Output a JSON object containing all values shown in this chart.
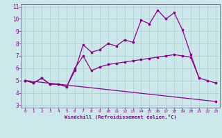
{
  "xlabel": "Windchill (Refroidissement éolien,°C)",
  "bg_color": "#cce8ea",
  "line_color": "#880088",
  "grid_color": "#aacccc",
  "axis_color": "#666688",
  "text_color": "#880088",
  "xlim": [
    -0.5,
    23.5
  ],
  "ylim": [
    2.8,
    11.2
  ],
  "xticks": [
    0,
    1,
    2,
    3,
    4,
    5,
    6,
    7,
    8,
    9,
    10,
    11,
    12,
    13,
    14,
    15,
    16,
    17,
    18,
    19,
    20,
    21,
    22,
    23
  ],
  "yticks": [
    3,
    4,
    5,
    6,
    7,
    8,
    9,
    10,
    11
  ],
  "series1_x": [
    0,
    1,
    2,
    3,
    4,
    5,
    6,
    7,
    8,
    9,
    10,
    11,
    12,
    13,
    14,
    15,
    16,
    17,
    18,
    19,
    20,
    21,
    22,
    23
  ],
  "series1_y": [
    5.0,
    4.8,
    5.2,
    4.7,
    4.7,
    4.5,
    5.8,
    7.9,
    7.3,
    7.5,
    8.0,
    7.8,
    8.3,
    8.1,
    9.9,
    9.6,
    10.7,
    10.0,
    10.5,
    9.1,
    7.1,
    5.2,
    5.0,
    4.8
  ],
  "series2_x": [
    0,
    1,
    2,
    3,
    4,
    5,
    6,
    7,
    8,
    9,
    10,
    11,
    12,
    13,
    14,
    15,
    16,
    17,
    18,
    19,
    20,
    21
  ],
  "series2_y": [
    5.0,
    4.8,
    5.2,
    4.7,
    4.7,
    4.5,
    6.0,
    7.0,
    5.8,
    6.1,
    6.3,
    6.4,
    6.5,
    6.6,
    6.7,
    6.8,
    6.9,
    7.0,
    7.1,
    7.0,
    6.9,
    5.2
  ],
  "series3_x": [
    0,
    23
  ],
  "series3_y": [
    5.0,
    3.3
  ]
}
